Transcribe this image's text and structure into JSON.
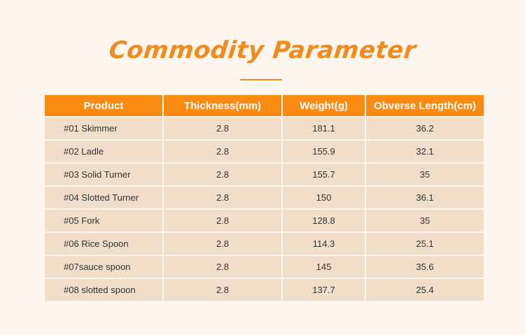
{
  "title": "Commodity Parameter",
  "table": {
    "headers": [
      "Product",
      "Thickness(mm)",
      "Weight(g)",
      "Obverse Length(cm)"
    ],
    "rows": [
      [
        "#01 Skimmer",
        "2.8",
        "181.1",
        "36.2"
      ],
      [
        "#02 Ladle",
        "2.8",
        "155.9",
        "32.1"
      ],
      [
        "#03 Solid Turner",
        "2.8",
        "155.7",
        "35"
      ],
      [
        "#04 Slotted Turner",
        "2.8",
        "150",
        "36.1"
      ],
      [
        "#05 Fork",
        "2.8",
        "128.8",
        "35"
      ],
      [
        "#06 Rice Spoon",
        "2.8",
        "114.3",
        "25.1"
      ],
      [
        "#07sauce spoon",
        "2.8",
        "145",
        "35.6"
      ],
      [
        "#08 slotted spoon",
        "2.8",
        "137.7",
        "25.4"
      ]
    ]
  },
  "colors": {
    "background": "#fdf6ee",
    "accent": "#fb8b13",
    "cell": "#f2dec8",
    "text": "#333333"
  }
}
